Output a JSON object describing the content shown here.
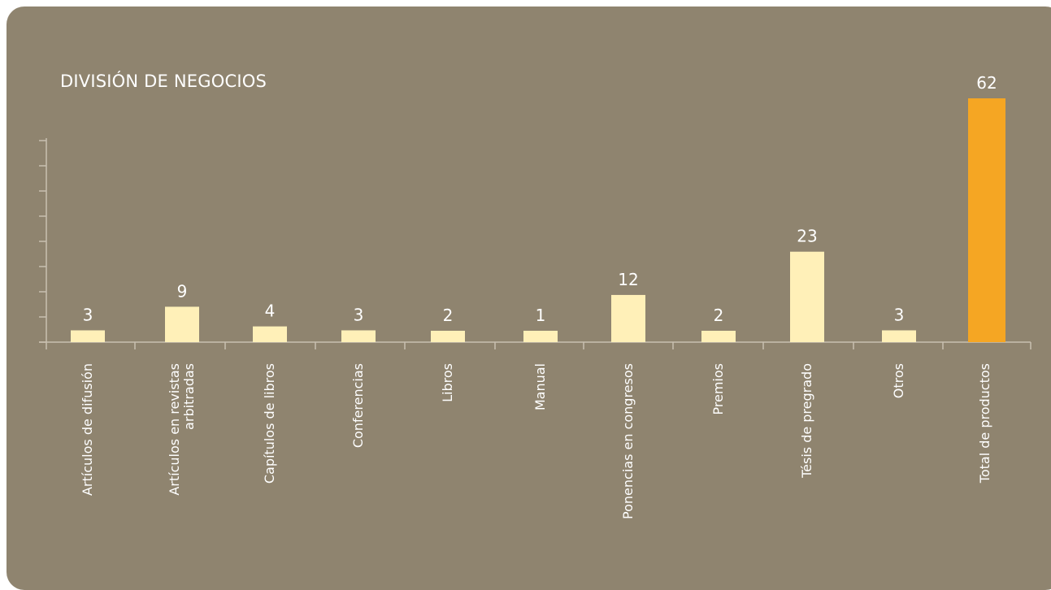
{
  "chart_data": {
    "type": "bar",
    "title": "DIVISIÓN DE NEGOCIOS",
    "categories": [
      "Artículos de difusión",
      "Artículos en revistas arbitradas",
      "Capítulos de libros",
      "Conferencias",
      "Libros",
      "Manual",
      "Ponencias en congresos",
      "Premios",
      "Tésis de pregrado",
      "Otros",
      "Total de productos"
    ],
    "category_lines": [
      [
        "Artículos de difusión"
      ],
      [
        "Artículos en revistas",
        "arbitradas"
      ],
      [
        "Capítulos de libros"
      ],
      [
        "Conferencias"
      ],
      [
        "Libros"
      ],
      [
        "Manual"
      ],
      [
        "Ponencias en congresos"
      ],
      [
        "Premios"
      ],
      [
        "Tésis de pregrado"
      ],
      [
        "Otros"
      ],
      [
        "Total de productos"
      ]
    ],
    "values": [
      3,
      9,
      4,
      3,
      2,
      1,
      12,
      2,
      23,
      3,
      62
    ],
    "ylim": [
      0,
      64
    ],
    "xlabel": "",
    "ylabel": "",
    "grid": false,
    "colors": {
      "background": "#8f846f",
      "bar": "#fff0b8",
      "total_bar": "#f5a623",
      "axis": "#c9c0b0",
      "text": "#ffffff"
    }
  }
}
